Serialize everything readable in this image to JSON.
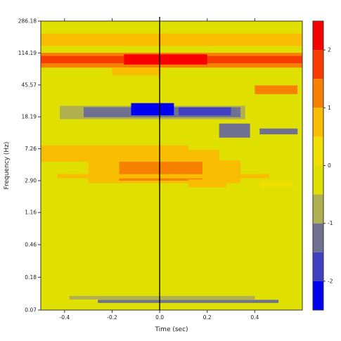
{
  "chart_data": {
    "type": "heatmap",
    "title": "",
    "xlabel": "Time (sec)",
    "ylabel": "Frequency (Hz)",
    "xlim": [
      -0.5,
      0.6
    ],
    "ylim": [
      0.07,
      286.18
    ],
    "y_scale": "log",
    "x_ticks": [
      "-0.4",
      "-0.2",
      "0.0",
      "0.2",
      "0.4"
    ],
    "x_tick_values": [
      -0.4,
      -0.2,
      0.0,
      0.2,
      0.4
    ],
    "y_ticks": [
      "286.18",
      "114.19",
      "45.57",
      "18.19",
      "7.26",
      "2.90",
      "1.16",
      "0.46",
      "0.18",
      "0.07"
    ],
    "y_tick_values": [
      286.18,
      114.19,
      45.57,
      18.19,
      7.26,
      2.9,
      1.16,
      0.46,
      0.18,
      0.07
    ],
    "event_marker_time": 0.0,
    "grid": false,
    "colorbar": {
      "ticks": [
        "2",
        "1",
        "0",
        "-1",
        "-2"
      ],
      "tick_values": [
        2,
        1,
        0,
        -1,
        -2
      ],
      "range": [
        -2.5,
        2.5
      ],
      "levels": [
        {
          "from": 2.0,
          "to": 2.5,
          "color": "#f80000"
        },
        {
          "from": 1.5,
          "to": 2.0,
          "color": "#f83c00"
        },
        {
          "from": 1.0,
          "to": 1.5,
          "color": "#f88000"
        },
        {
          "from": 0.5,
          "to": 1.0,
          "color": "#f8bc00"
        },
        {
          "from": 0.0,
          "to": 0.5,
          "color": "#f0e000"
        },
        {
          "from": -0.5,
          "to": 0.0,
          "color": "#e0e000"
        },
        {
          "from": -1.0,
          "to": -0.5,
          "color": "#b0b050"
        },
        {
          "from": -1.5,
          "to": -1.0,
          "color": "#707090"
        },
        {
          "from": -2.0,
          "to": -1.5,
          "color": "#4040c0"
        },
        {
          "from": -2.5,
          "to": -2.0,
          "color": "#0000f0"
        }
      ]
    },
    "background_value": -0.2,
    "regions": [
      {
        "t_start": -0.5,
        "t_end": 0.6,
        "f_low": 75,
        "f_high": 115,
        "value": 1.2
      },
      {
        "t_start": -0.5,
        "t_end": 0.6,
        "f_low": 85,
        "f_high": 105,
        "value": 1.7
      },
      {
        "t_start": -0.15,
        "t_end": 0.2,
        "f_low": 82,
        "f_high": 110,
        "value": 2.2
      },
      {
        "t_start": -0.2,
        "t_end": 0.0,
        "f_low": 60,
        "f_high": 75,
        "value": 0.7
      },
      {
        "t_start": 0.4,
        "t_end": 0.58,
        "f_low": 35,
        "f_high": 45,
        "value": 1.1
      },
      {
        "t_start": -0.5,
        "t_end": 0.6,
        "f_low": 140,
        "f_high": 200,
        "value": 0.6
      },
      {
        "t_start": -0.42,
        "t_end": 0.36,
        "f_low": 17,
        "f_high": 25,
        "value": -0.8
      },
      {
        "t_start": -0.32,
        "t_end": 0.34,
        "f_low": 18,
        "f_high": 24,
        "value": -1.3
      },
      {
        "t_start": -0.12,
        "t_end": 0.06,
        "f_low": 19,
        "f_high": 27,
        "value": -2.2
      },
      {
        "t_start": 0.08,
        "t_end": 0.3,
        "f_low": 19,
        "f_high": 24,
        "value": -1.7
      },
      {
        "t_start": 0.25,
        "t_end": 0.38,
        "f_low": 10,
        "f_high": 15,
        "value": -1.2
      },
      {
        "t_start": 0.42,
        "t_end": 0.58,
        "f_low": 11,
        "f_high": 13,
        "value": -1.2
      },
      {
        "t_start": -0.5,
        "t_end": 0.12,
        "f_low": 6,
        "f_high": 8,
        "value": 0.9
      },
      {
        "t_start": -0.5,
        "t_end": 0.25,
        "f_low": 5,
        "f_high": 7,
        "value": 0.7
      },
      {
        "t_start": -0.3,
        "t_end": 0.34,
        "f_low": 2.7,
        "f_high": 5.2,
        "value": 0.8
      },
      {
        "t_start": -0.17,
        "t_end": 0.18,
        "f_low": 2.9,
        "f_high": 5.0,
        "value": 1.3
      },
      {
        "t_start": -0.43,
        "t_end": 0.46,
        "f_low": 3.1,
        "f_high": 3.5,
        "value": 0.7
      },
      {
        "t_start": 0.12,
        "t_end": 0.28,
        "f_low": 2.4,
        "f_high": 3.0,
        "value": 0.6
      },
      {
        "t_start": 0.42,
        "t_end": 0.56,
        "f_low": 2.4,
        "f_high": 2.8,
        "value": 0.3
      },
      {
        "t_start": -0.38,
        "t_end": 0.4,
        "f_low": 0.095,
        "f_high": 0.105,
        "value": -0.7
      },
      {
        "t_start": -0.26,
        "t_end": 0.5,
        "f_low": 0.086,
        "f_high": 0.094,
        "value": -1.2
      }
    ]
  }
}
